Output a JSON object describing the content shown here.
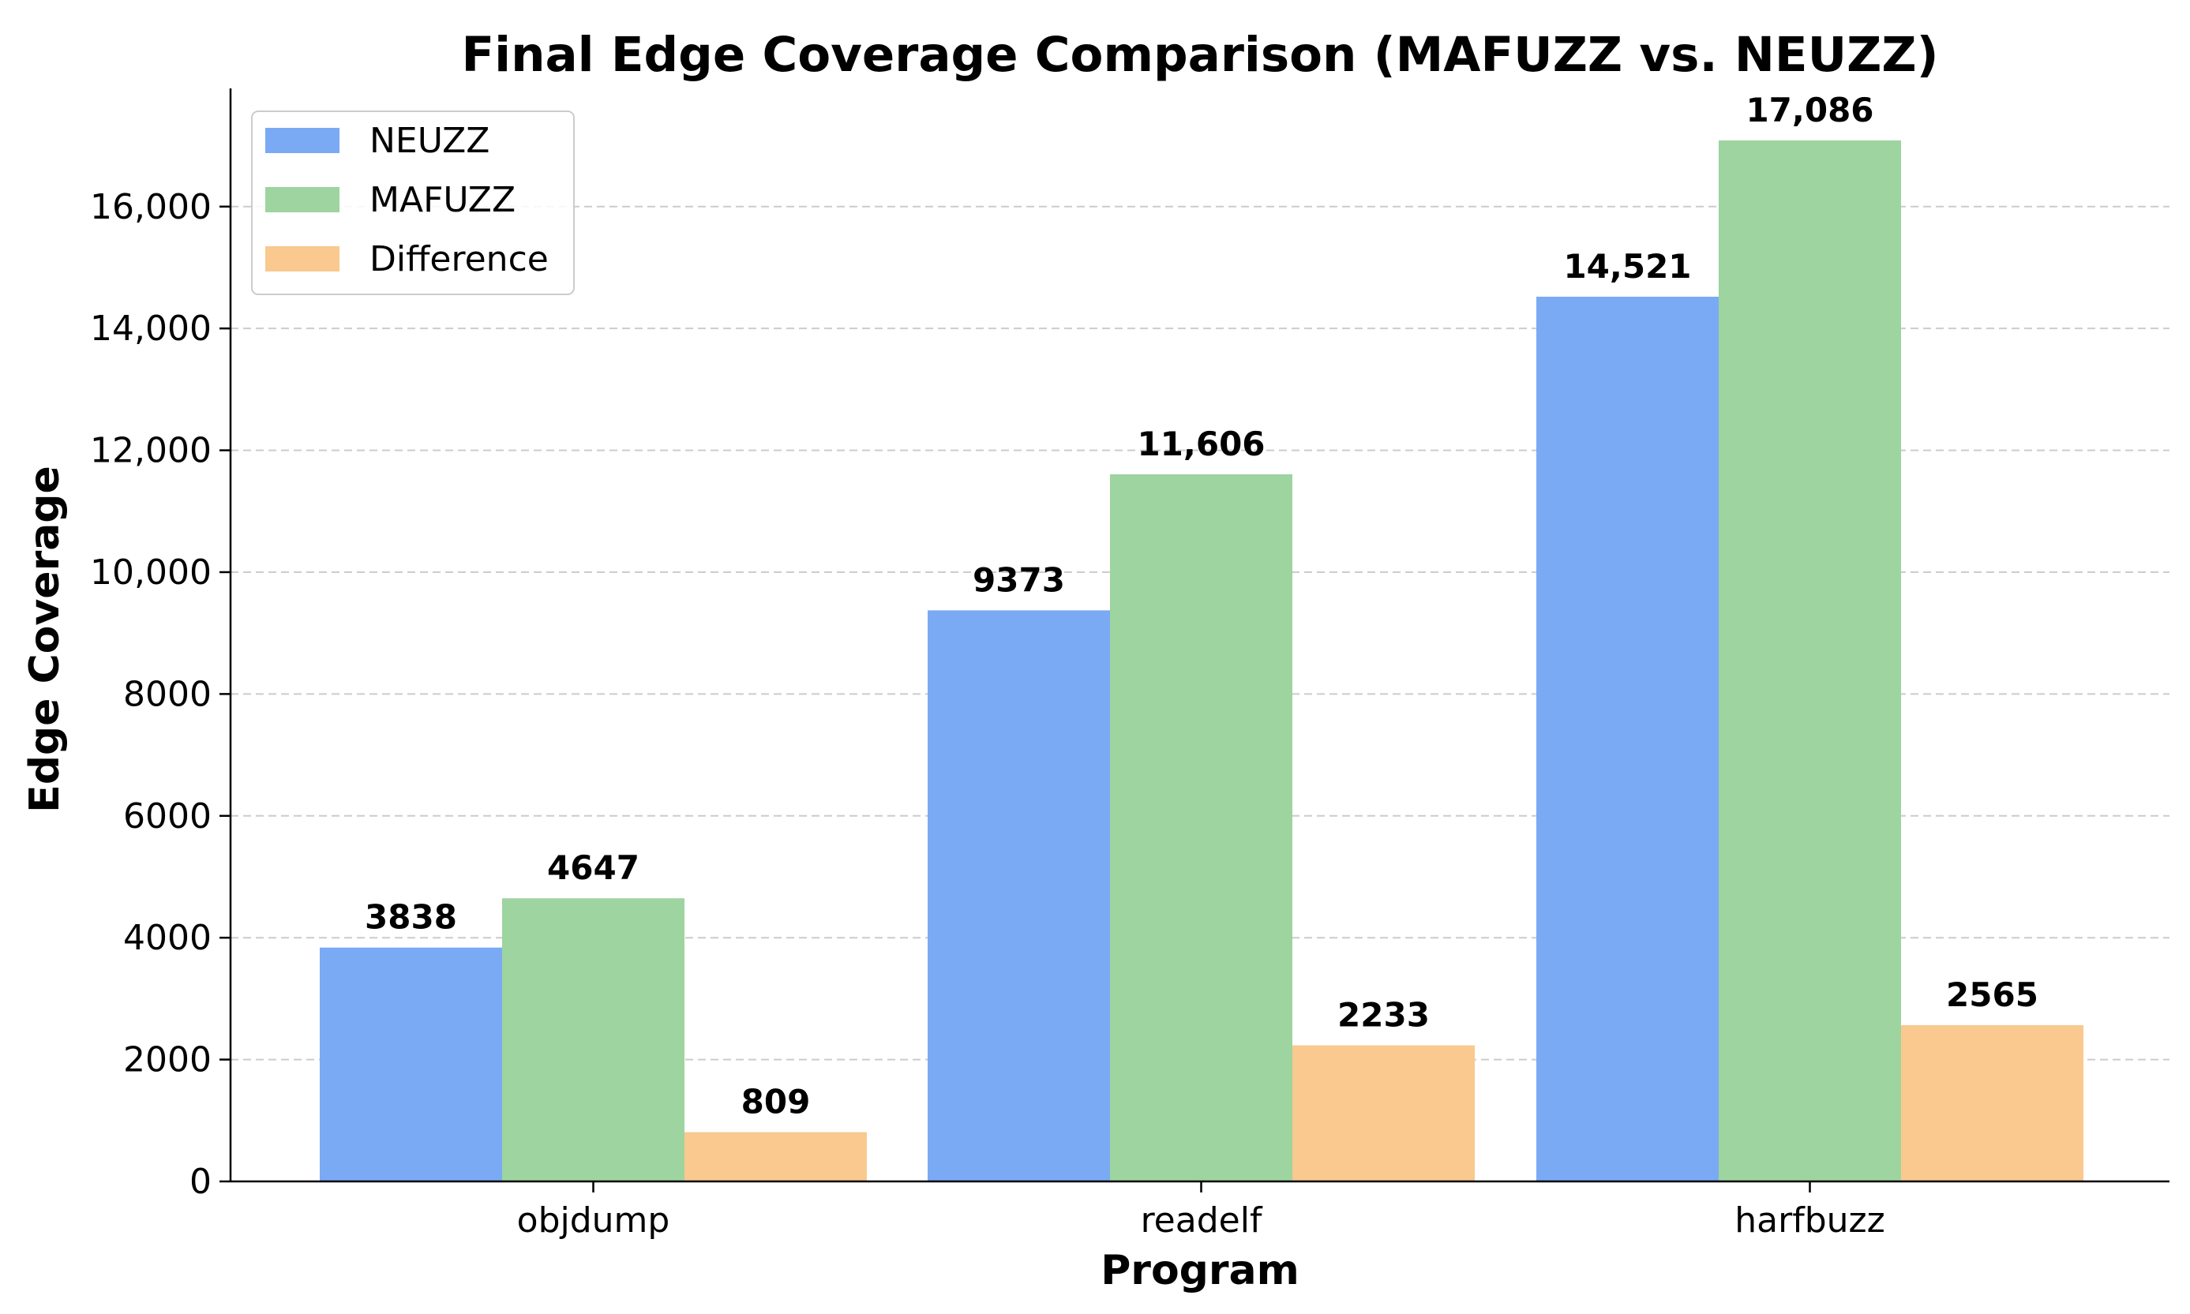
{
  "chart_data": {
    "type": "bar",
    "title": "Final Edge Coverage Comparison (MAFUZZ vs. NEUZZ)",
    "xlabel": "Program",
    "ylabel": "Edge Coverage",
    "categories": [
      "objdump",
      "readelf",
      "harfbuzz"
    ],
    "series": [
      {
        "name": "NEUZZ",
        "color": "#7baaf4",
        "values": [
          3838,
          9373,
          14521
        ],
        "labels": [
          "3838",
          "9373",
          "14,521"
        ]
      },
      {
        "name": "MAFUZZ",
        "color": "#9dd4a0",
        "values": [
          4647,
          11606,
          17086
        ],
        "labels": [
          "4647",
          "11,606",
          "17,086"
        ]
      },
      {
        "name": "Difference",
        "color": "#f9c98f",
        "values": [
          809,
          2233,
          2565
        ],
        "labels": [
          "809",
          "2233",
          "2565"
        ]
      }
    ],
    "ylim": [
      0,
      17940
    ],
    "yticks": [
      0,
      2000,
      4000,
      6000,
      8000,
      10000,
      12000,
      14000,
      16000
    ],
    "ytick_labels": [
      "0",
      "2000",
      "4000",
      "6000",
      "8000",
      "10,000",
      "12,000",
      "14,000",
      "16,000"
    ],
    "grid": true,
    "legend_position": "top-left"
  }
}
